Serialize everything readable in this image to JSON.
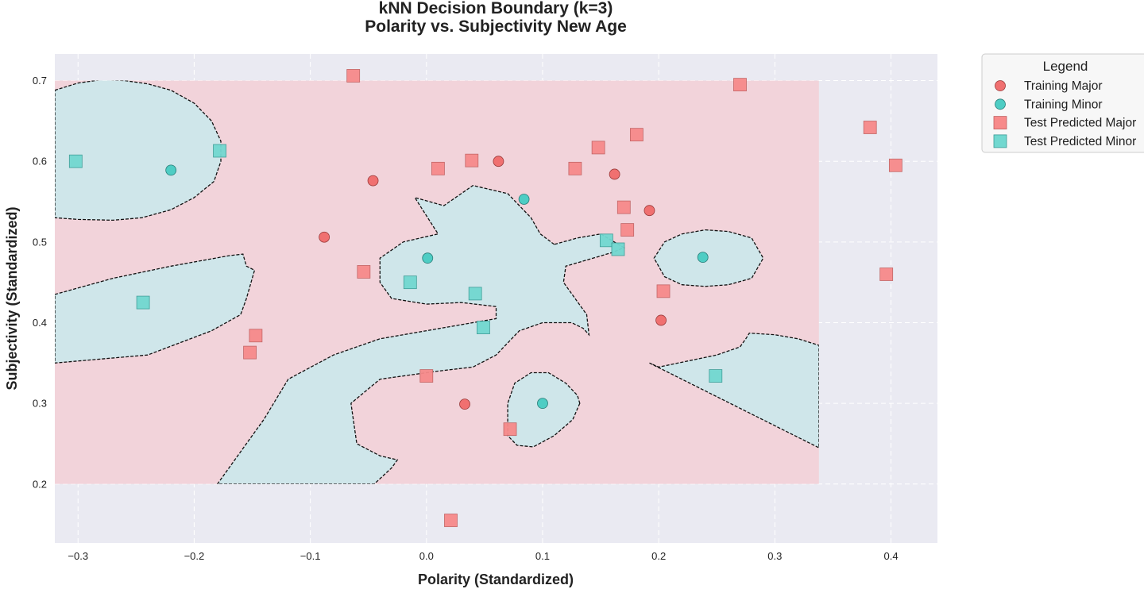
{
  "colors": {
    "plot_background": "#eaeaf2",
    "region_major": "#f2d3da",
    "region_minor": "#cfe6ea",
    "major": "#f07070",
    "minor": "#4ecdc4",
    "test_major": "#f78a8a",
    "test_minor": "#72d8d0",
    "boundary": "#111111",
    "grid": "#ffffff"
  },
  "chart_data": {
    "type": "scatter",
    "title": "kNN Decision Boundary (k=3)",
    "subtitle": "Polarity vs. Subjectivity New Age",
    "xlabel": "Polarity (Standardized)",
    "ylabel": "Subjectivity (Standardized)",
    "xlim": [
      -0.32,
      0.44
    ],
    "ylim": [
      0.127,
      0.733
    ],
    "xticks": [
      -0.3,
      -0.2,
      -0.1,
      0.0,
      0.1,
      0.2,
      0.3,
      0.4
    ],
    "xtick_labels": [
      "−0.3",
      "−0.2",
      "−0.1",
      "0.0",
      "0.1",
      "0.2",
      "0.3",
      "0.4"
    ],
    "yticks": [
      0.2,
      0.3,
      0.4,
      0.5,
      0.6,
      0.7
    ],
    "ytick_labels": [
      "0.2",
      "0.3",
      "0.4",
      "0.5",
      "0.6",
      "0.7"
    ],
    "grid": true,
    "legend_position": "outside-top-right",
    "legend": {
      "title": "Legend",
      "entries": [
        "Training Major",
        "Training Minor",
        "Test Predicted Major",
        "Test Predicted Minor"
      ]
    },
    "decision_region": {
      "x_range": [
        -0.32,
        0.338
      ],
      "y_range": [
        0.2,
        0.7
      ],
      "default_class": "Major",
      "minor_regions": [
        [
          [
            -0.32,
            0.688
          ],
          [
            -0.3,
            0.697
          ],
          [
            -0.28,
            0.701
          ],
          [
            -0.26,
            0.7
          ],
          [
            -0.24,
            0.696
          ],
          [
            -0.22,
            0.688
          ],
          [
            -0.2,
            0.672
          ],
          [
            -0.185,
            0.65
          ],
          [
            -0.177,
            0.625
          ],
          [
            -0.177,
            0.6
          ],
          [
            -0.183,
            0.575
          ],
          [
            -0.2,
            0.555
          ],
          [
            -0.22,
            0.54
          ],
          [
            -0.245,
            0.53
          ],
          [
            -0.27,
            0.527
          ],
          [
            -0.3,
            0.528
          ],
          [
            -0.32,
            0.53
          ]
        ],
        [
          [
            -0.32,
            0.435
          ],
          [
            -0.27,
            0.455
          ],
          [
            -0.22,
            0.47
          ],
          [
            -0.17,
            0.483
          ],
          [
            -0.158,
            0.485
          ],
          [
            -0.155,
            0.47
          ],
          [
            -0.148,
            0.465
          ],
          [
            -0.155,
            0.43
          ],
          [
            -0.16,
            0.41
          ],
          [
            -0.185,
            0.39
          ],
          [
            -0.24,
            0.36
          ],
          [
            -0.32,
            0.35
          ]
        ],
        [
          [
            0.11,
            0.497
          ],
          [
            0.098,
            0.51
          ],
          [
            0.09,
            0.53
          ],
          [
            0.07,
            0.56
          ],
          [
            0.04,
            0.57
          ],
          [
            0.015,
            0.545
          ],
          [
            -0.01,
            0.555
          ],
          [
            0.01,
            0.51
          ],
          [
            -0.02,
            0.5
          ],
          [
            -0.04,
            0.48
          ],
          [
            -0.04,
            0.45
          ],
          [
            -0.03,
            0.43
          ],
          [
            0,
            0.423
          ],
          [
            0.03,
            0.425
          ],
          [
            0.06,
            0.42
          ],
          [
            0.06,
            0.405
          ],
          [
            -0.04,
            0.38
          ],
          [
            -0.08,
            0.36
          ],
          [
            -0.119,
            0.33
          ],
          [
            -0.14,
            0.28
          ],
          [
            -0.16,
            0.24
          ],
          [
            -0.18,
            0.2
          ],
          [
            -0.045,
            0.2
          ],
          [
            -0.03,
            0.22
          ],
          [
            -0.025,
            0.23
          ],
          [
            -0.04,
            0.235
          ],
          [
            -0.06,
            0.25
          ],
          [
            -0.065,
            0.3
          ],
          [
            -0.04,
            0.33
          ],
          [
            0.01,
            0.34
          ],
          [
            0.04,
            0.345
          ],
          [
            0.06,
            0.36
          ],
          [
            0.08,
            0.39
          ],
          [
            0.1,
            0.4
          ],
          [
            0.125,
            0.4
          ],
          [
            0.135,
            0.393
          ],
          [
            0.14,
            0.385
          ],
          [
            0.138,
            0.41
          ],
          [
            0.128,
            0.43
          ],
          [
            0.118,
            0.45
          ],
          [
            0.12,
            0.47
          ],
          [
            0.16,
            0.487
          ],
          [
            0.17,
            0.493
          ],
          [
            0.15,
            0.51
          ],
          [
            0.13,
            0.505
          ]
        ],
        [
          [
            0.24,
            0.515
          ],
          [
            0.26,
            0.513
          ],
          [
            0.28,
            0.505
          ],
          [
            0.29,
            0.48
          ],
          [
            0.28,
            0.455
          ],
          [
            0.26,
            0.447
          ],
          [
            0.24,
            0.445
          ],
          [
            0.22,
            0.447
          ],
          [
            0.205,
            0.457
          ],
          [
            0.196,
            0.48
          ],
          [
            0.205,
            0.5
          ],
          [
            0.22,
            0.51
          ]
        ],
        [
          [
            0.132,
            0.3
          ],
          [
            0.126,
            0.28
          ],
          [
            0.11,
            0.26
          ],
          [
            0.092,
            0.246
          ],
          [
            0.078,
            0.248
          ],
          [
            0.07,
            0.26
          ],
          [
            0.07,
            0.3
          ],
          [
            0.076,
            0.325
          ],
          [
            0.09,
            0.338
          ],
          [
            0.105,
            0.338
          ],
          [
            0.12,
            0.325
          ],
          [
            0.13,
            0.31
          ]
        ],
        [
          [
            0.192,
            0.35
          ],
          [
            0.338,
            0.245
          ],
          [
            0.338,
            0.372
          ],
          [
            0.32,
            0.38
          ],
          [
            0.3,
            0.385
          ],
          [
            0.278,
            0.387
          ],
          [
            0.275,
            0.38
          ],
          [
            0.27,
            0.37
          ],
          [
            0.25,
            0.36
          ],
          [
            0.2,
            0.345
          ]
        ]
      ]
    },
    "series": [
      {
        "name": "Training Major",
        "points": [
          [
            -0.088,
            0.506
          ],
          [
            -0.046,
            0.576
          ],
          [
            0.062,
            0.6
          ],
          [
            0.162,
            0.584
          ],
          [
            0.192,
            0.539
          ],
          [
            0.202,
            0.403
          ],
          [
            0.033,
            0.299
          ]
        ]
      },
      {
        "name": "Training Minor",
        "points": [
          [
            -0.22,
            0.589
          ],
          [
            0.001,
            0.48
          ],
          [
            0.084,
            0.553
          ],
          [
            0.238,
            0.481
          ],
          [
            0.1,
            0.3
          ]
        ]
      },
      {
        "name": "Test Predicted Major",
        "points": [
          [
            -0.063,
            0.706
          ],
          [
            -0.054,
            0.463
          ],
          [
            -0.147,
            0.384
          ],
          [
            -0.152,
            0.363
          ],
          [
            0.01,
            0.591
          ],
          [
            0.039,
            0.601
          ],
          [
            0.128,
            0.591
          ],
          [
            0.148,
            0.617
          ],
          [
            0.181,
            0.633
          ],
          [
            0.17,
            0.543
          ],
          [
            0.173,
            0.515
          ],
          [
            0.204,
            0.439
          ],
          [
            0.0,
            0.334
          ],
          [
            0.072,
            0.268
          ],
          [
            0.021,
            0.155
          ],
          [
            0.27,
            0.695
          ],
          [
            0.382,
            0.642
          ],
          [
            0.404,
            0.595
          ],
          [
            0.396,
            0.46
          ]
        ]
      },
      {
        "name": "Test Predicted Minor",
        "points": [
          [
            -0.302,
            0.6
          ],
          [
            -0.178,
            0.613
          ],
          [
            -0.244,
            0.425
          ],
          [
            -0.014,
            0.45
          ],
          [
            0.042,
            0.436
          ],
          [
            0.049,
            0.394
          ],
          [
            0.155,
            0.502
          ],
          [
            0.165,
            0.491
          ],
          [
            0.249,
            0.334
          ]
        ]
      }
    ]
  }
}
